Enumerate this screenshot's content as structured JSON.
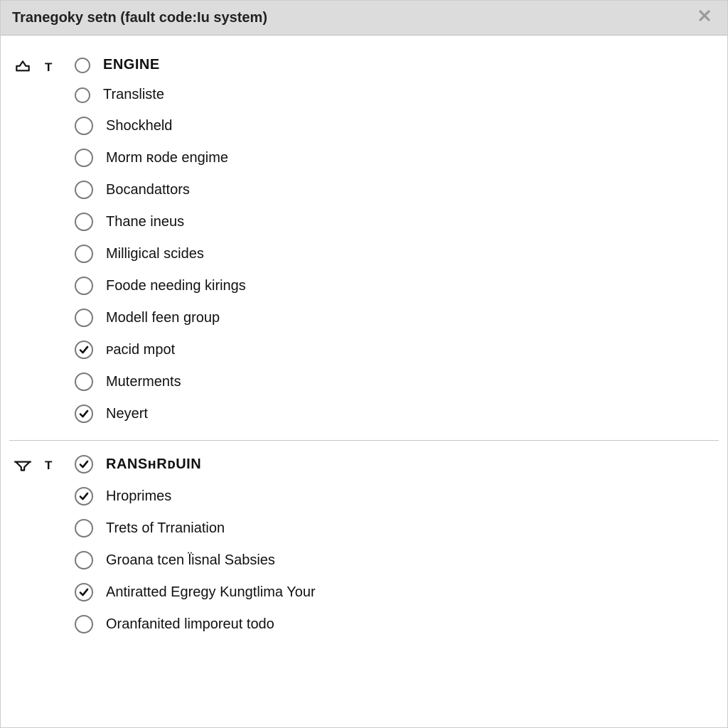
{
  "window": {
    "title": "Tranegoky setn (fault code:Iu system)"
  },
  "groups": [
    {
      "icon": "export",
      "marker": "T",
      "items": [
        {
          "label": "ENGINE",
          "checked": false,
          "header": true,
          "small": true
        },
        {
          "label": "Transliste",
          "checked": false,
          "header": false,
          "small": true
        },
        {
          "label": "Shockheld",
          "checked": false,
          "header": false,
          "small": false
        },
        {
          "label": "Morm ʀode engime",
          "checked": false,
          "header": false,
          "small": false
        },
        {
          "label": "Bocandattors",
          "checked": false,
          "header": false,
          "small": false
        },
        {
          "label": "Thane ineus",
          "checked": false,
          "header": false,
          "small": false
        },
        {
          "label": "Milligical scides",
          "checked": false,
          "header": false,
          "small": false
        },
        {
          "label": "Foode needing kirings",
          "checked": false,
          "header": false,
          "small": false
        },
        {
          "label": "Modell feen group",
          "checked": false,
          "header": false,
          "small": false
        },
        {
          "label": "ᴘacid mpot",
          "checked": true,
          "header": false,
          "small": false
        },
        {
          "label": "Muterments",
          "checked": false,
          "header": false,
          "small": false
        },
        {
          "label": "Neyert",
          "checked": true,
          "header": false,
          "small": false
        }
      ]
    },
    {
      "icon": "filter",
      "marker": "T",
      "items": [
        {
          "label": "RANSʜRᴅUIN",
          "checked": true,
          "header": true,
          "small": false
        },
        {
          "label": "Hroprimes",
          "checked": true,
          "header": false,
          "small": false
        },
        {
          "label": "Trets of Trraniation",
          "checked": false,
          "header": false,
          "small": false
        },
        {
          "label": "Groana tcen l̈isnal Sabsies",
          "checked": false,
          "header": false,
          "small": false
        },
        {
          "label": "Antiratted Egregy Kungtlima Your",
          "checked": true,
          "header": false,
          "small": false
        },
        {
          "label": "Oranfanited limporeut todo",
          "checked": false,
          "header": false,
          "small": false
        }
      ]
    }
  ]
}
